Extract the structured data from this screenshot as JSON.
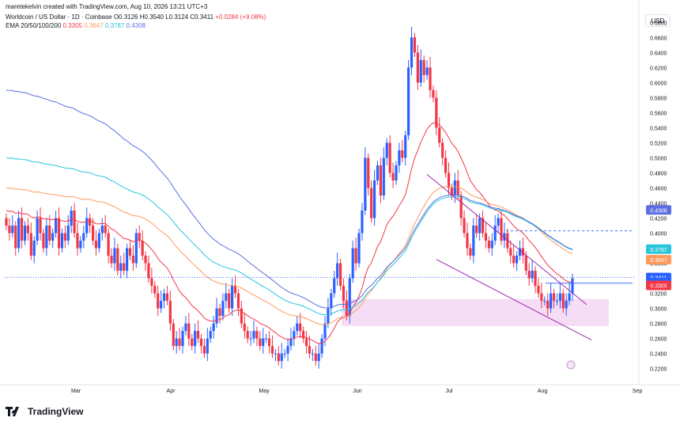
{
  "header": {
    "attribution": "maretekelvin created with TradingView.com, Aug 10, 2026 13:21 UTC+3",
    "symbol": "Worldcoin / US Dollar · 1D · Coinbase",
    "open": "O0.3126",
    "high": "H0.3540",
    "low": "L0.3124",
    "close": "C0.3411",
    "change": "+0.0284 (+9.08%)",
    "ema_label": "EMA 20/50/100/200",
    "ema20": "0.3305",
    "ema50": "0.3647",
    "ema100": "0.3787",
    "ema200": "0.4308"
  },
  "currency": "USD",
  "footer": {
    "brand": "TradingView"
  },
  "colors": {
    "up": "#2962ff",
    "down": "#f23645",
    "ema20": "#f23645",
    "ema50": "#ff9a5c",
    "ema100": "#26c6da",
    "ema200": "#5b6ee1",
    "channel": "#9c27b0",
    "zone": "#f3d6f3"
  },
  "chart_data": {
    "type": "candlestick",
    "y_axis_ticks": [
      "0.6800",
      "0.6600",
      "0.6400",
      "0.6200",
      "0.6000",
      "0.5800",
      "0.5600",
      "0.5400",
      "0.5200",
      "0.5000",
      "0.4800",
      "0.4600",
      "0.4400",
      "0.4200",
      "0.4000",
      "0.3800",
      "0.3600",
      "0.3400",
      "0.3200",
      "0.3000",
      "0.2800",
      "0.2600",
      "0.2400",
      "0.2200"
    ],
    "x_axis_ticks": [
      "Mar",
      "Apr",
      "May",
      "Jun",
      "Jul",
      "Aug",
      "Sep"
    ],
    "ylim": [
      0.205,
      0.695
    ],
    "price_labels": [
      {
        "text": "0.4308",
        "color": "#5b6ee1",
        "value": 0.4308
      },
      {
        "text": "0.3787",
        "color": "#26c6da",
        "value": 0.3787
      },
      {
        "text": "0.3647",
        "color": "#ff9a5c",
        "value": 0.3647
      },
      {
        "text": "0.3411",
        "color": "#2962ff",
        "value": 0.3411
      },
      {
        "text": "13:38:50",
        "color": "#2962ff",
        "value": 0.3341
      },
      {
        "text": "0.3305",
        "color": "#f23645",
        "value": 0.3305
      }
    ],
    "close_series": [
      0.41,
      0.4,
      0.41,
      0.38,
      0.42,
      0.39,
      0.41,
      0.4,
      0.37,
      0.39,
      0.42,
      0.4,
      0.38,
      0.41,
      0.39,
      0.4,
      0.42,
      0.38,
      0.4,
      0.39,
      0.41,
      0.43,
      0.4,
      0.38,
      0.39,
      0.4,
      0.42,
      0.41,
      0.39,
      0.38,
      0.4,
      0.41,
      0.4,
      0.37,
      0.36,
      0.38,
      0.35,
      0.36,
      0.35,
      0.38,
      0.37,
      0.36,
      0.4,
      0.39,
      0.37,
      0.36,
      0.34,
      0.33,
      0.32,
      0.3,
      0.31,
      0.32,
      0.31,
      0.28,
      0.25,
      0.26,
      0.25,
      0.27,
      0.28,
      0.26,
      0.25,
      0.27,
      0.26,
      0.25,
      0.24,
      0.26,
      0.27,
      0.28,
      0.3,
      0.29,
      0.31,
      0.32,
      0.3,
      0.33,
      0.32,
      0.3,
      0.28,
      0.27,
      0.26,
      0.26,
      0.27,
      0.26,
      0.25,
      0.26,
      0.26,
      0.25,
      0.24,
      0.24,
      0.23,
      0.24,
      0.24,
      0.25,
      0.26,
      0.27,
      0.28,
      0.27,
      0.26,
      0.25,
      0.24,
      0.24,
      0.23,
      0.24,
      0.26,
      0.28,
      0.3,
      0.32,
      0.34,
      0.36,
      0.33,
      0.31,
      0.29,
      0.34,
      0.38,
      0.36,
      0.4,
      0.43,
      0.5,
      0.46,
      0.42,
      0.47,
      0.49,
      0.45,
      0.5,
      0.52,
      0.48,
      0.47,
      0.49,
      0.51,
      0.5,
      0.53,
      0.62,
      0.66,
      0.64,
      0.6,
      0.63,
      0.61,
      0.62,
      0.59,
      0.58,
      0.54,
      0.52,
      0.5,
      0.48,
      0.46,
      0.45,
      0.47,
      0.45,
      0.42,
      0.4,
      0.38,
      0.37,
      0.41,
      0.4,
      0.42,
      0.4,
      0.39,
      0.38,
      0.39,
      0.41,
      0.42,
      0.39,
      0.4,
      0.38,
      0.37,
      0.36,
      0.37,
      0.38,
      0.37,
      0.35,
      0.34,
      0.35,
      0.33,
      0.32,
      0.31,
      0.31,
      0.3,
      0.32,
      0.31,
      0.31,
      0.32,
      0.3,
      0.31,
      0.32,
      0.34
    ]
  }
}
